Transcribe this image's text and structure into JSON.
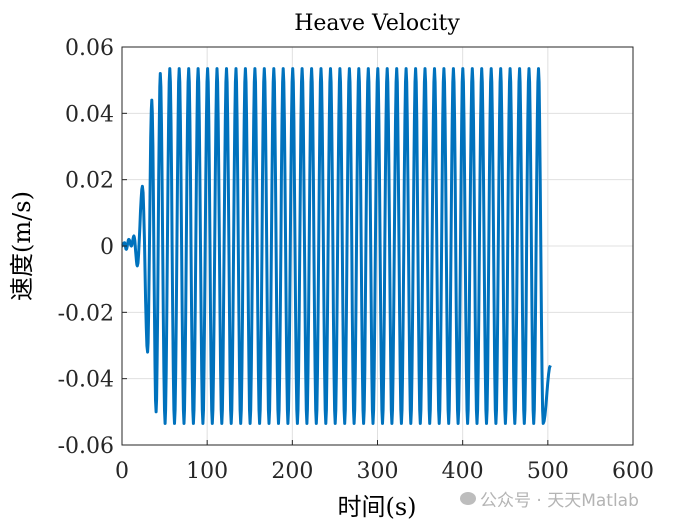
{
  "chart_data": {
    "type": "line",
    "title": "Heave Velocity",
    "xlabel": "时间(s)",
    "ylabel": "速度(m/s)",
    "xlim": [
      0,
      600
    ],
    "ylim": [
      -0.06,
      0.06
    ],
    "xticks": [
      "0",
      "100",
      "200",
      "300",
      "400",
      "500",
      "600"
    ],
    "yticks": [
      "0.06",
      "0.04",
      "0.02",
      "0",
      "-0.02",
      "-0.04",
      "-0.06"
    ],
    "grid": true,
    "line_color": "#0072BD",
    "series": [
      {
        "name": "Heave Velocity",
        "transient_extrema": [
          [
            0,
            0
          ],
          [
            3,
            0.001
          ],
          [
            5,
            -0.001
          ],
          [
            8,
            0.002
          ],
          [
            11,
            0
          ],
          [
            14,
            0.003
          ],
          [
            18,
            -0.006
          ],
          [
            24,
            0.018
          ],
          [
            30,
            -0.032
          ],
          [
            35,
            0.044
          ],
          [
            40,
            -0.05
          ],
          [
            45,
            0.052
          ]
        ],
        "steady_period": 11.1,
        "steady_amplitude": 0.0535,
        "steady_until": 500,
        "end_point": [
          503,
          -0.036
        ]
      }
    ]
  },
  "watermark": "公众号 · 天天Matlab"
}
